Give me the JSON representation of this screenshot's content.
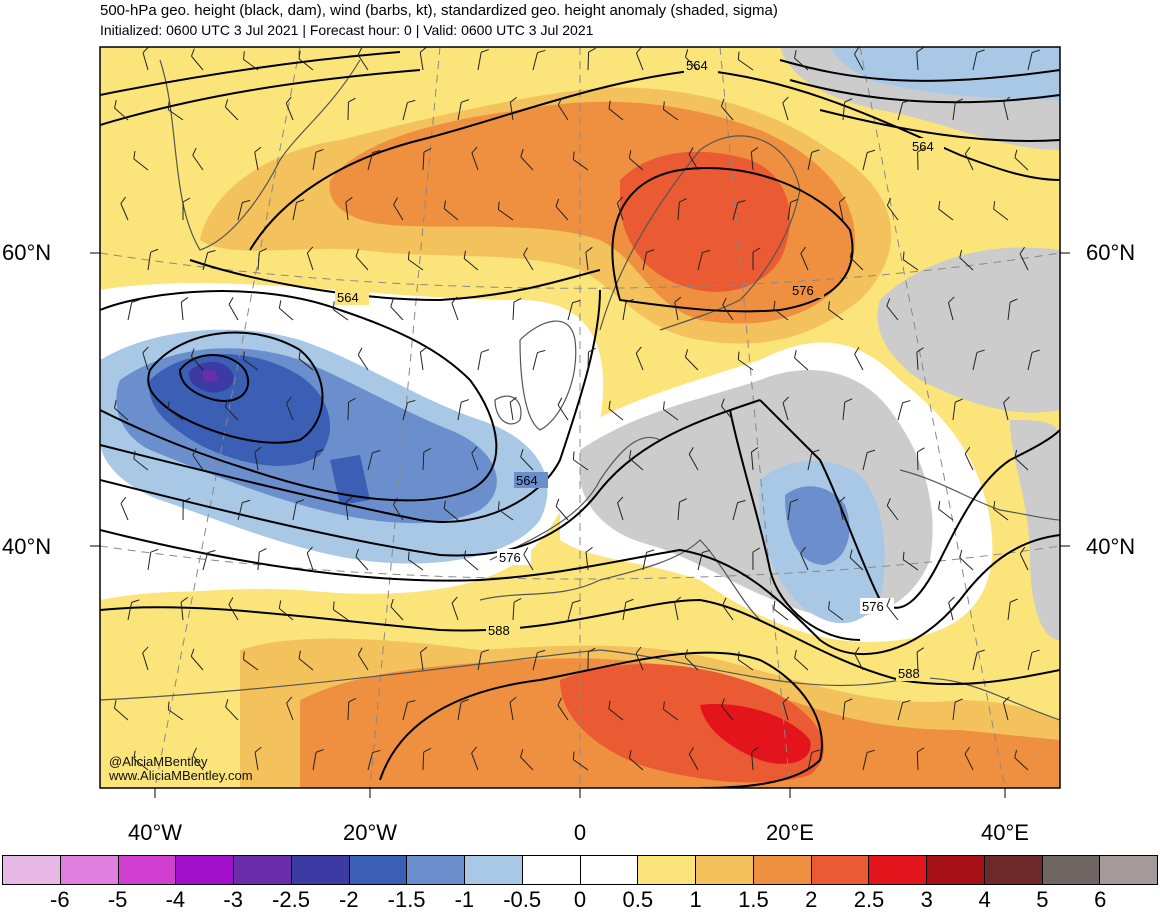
{
  "title": "500-hPa geo. height (black, dam), wind (barbs, kt), standardized geo. height anomaly (shaded, sigma)",
  "subtitle": "Initialized: 0600 UTC 3 Jul 2021 | Forecast hour: 0 | Valid: 0600 UTC 3 Jul 2021",
  "lat_labels": [
    "60°N",
    "40°N"
  ],
  "lon_labels": [
    "40°W",
    "20°W",
    "0",
    "20°E",
    "40°E"
  ],
  "contour_labels": [
    "564",
    "564",
    "564",
    "564",
    "576",
    "576",
    "576",
    "588",
    "588"
  ],
  "credit": {
    "handle": "@AliciaMBentley",
    "site": "www.AliciaMBentley.com"
  },
  "colorbar": {
    "ticks": [
      "-6",
      "-5",
      "-4",
      "-3",
      "-2.5",
      "-2",
      "-1.5",
      "-1",
      "-0.5",
      "0",
      "0.5",
      "1",
      "1.5",
      "2",
      "2.5",
      "3",
      "4",
      "5",
      "6"
    ],
    "colors": [
      "#e8b8e6",
      "#e07fdf",
      "#d03fd0",
      "#a10fca",
      "#6b2eaa",
      "#3b3ba3",
      "#3a5fb5",
      "#6b8fcd",
      "#a9c8e6",
      "#ffffff",
      "#ffffff",
      "#fbe57a",
      "#f4c25c",
      "#ef9040",
      "#ea5a33",
      "#e3141b",
      "#a50f15",
      "#6e2a2a",
      "#6f6563",
      "#a59a99"
    ]
  },
  "colors": {
    "ocean_background": "#f8e47c",
    "contour": "#000000",
    "coastline": "#555555"
  }
}
